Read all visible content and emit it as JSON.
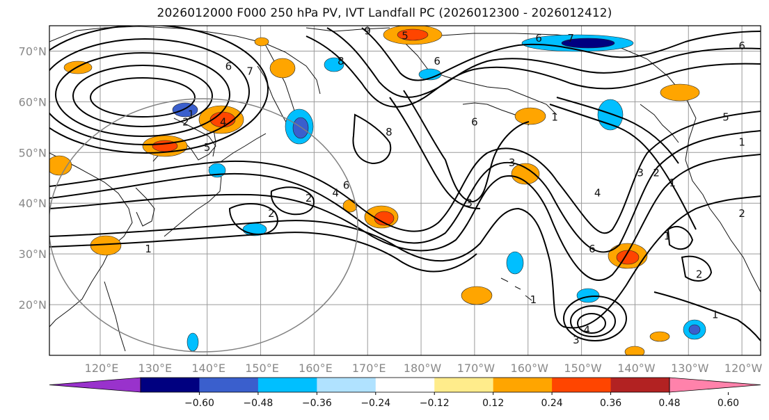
{
  "title": "2026012000 F000 250 hPa PV, IVT Landfall PC (2026012300 - 2026012412)",
  "lat_labels": [
    "70°N",
    "60°N",
    "50°N",
    "40°N",
    "30°N",
    "20°N"
  ],
  "lon_labels": [
    "120°E",
    "130°E",
    "140°E",
    "150°E",
    "160°E",
    "170°E",
    "180°W",
    "170°W",
    "160°W",
    "150°W",
    "140°W",
    "130°W",
    "120°W"
  ],
  "colorbar": {
    "ticks": [
      "−0.60",
      "−0.48",
      "−0.36",
      "−0.24",
      "−0.12",
      "0.12",
      "0.24",
      "0.36",
      "0.48",
      "0.60"
    ],
    "colors": [
      "#9932cc",
      "#000080",
      "#3a5fcd",
      "#00bfff",
      "#b0e2ff",
      "#ffffff",
      "#ffec8b",
      "#ffa500",
      "#ff4500",
      "#b22222",
      "#ff82ab"
    ]
  },
  "contour_labels": [
    {
      "text": "1",
      "lon": 137,
      "lat": 57.5
    },
    {
      "text": "2",
      "lon": 136,
      "lat": 56
    },
    {
      "text": "4",
      "lon": 143,
      "lat": 56
    },
    {
      "text": "5",
      "lon": 140,
      "lat": 51
    },
    {
      "text": "6",
      "lon": 144,
      "lat": 67
    },
    {
      "text": "7",
      "lon": 148,
      "lat": 66
    },
    {
      "text": "8",
      "lon": 165,
      "lat": 68
    },
    {
      "text": "9",
      "lon": 170,
      "lat": 74
    },
    {
      "text": "6",
      "lon": 183,
      "lat": 68
    },
    {
      "text": "5",
      "lon": 177,
      "lat": 73
    },
    {
      "text": "6",
      "lon": 202,
      "lat": 72.5
    },
    {
      "text": "7",
      "lon": 208,
      "lat": 72.5
    },
    {
      "text": "6",
      "lon": 240,
      "lat": 71
    },
    {
      "text": "8",
      "lon": 174,
      "lat": 54
    },
    {
      "text": "6",
      "lon": 190,
      "lat": 56
    },
    {
      "text": "3",
      "lon": 197,
      "lat": 48
    },
    {
      "text": "3",
      "lon": 189,
      "lat": 40
    },
    {
      "text": "1",
      "lon": 205,
      "lat": 57
    },
    {
      "text": "4",
      "lon": 213,
      "lat": 42
    },
    {
      "text": "3",
      "lon": 221,
      "lat": 46
    },
    {
      "text": "2",
      "lon": 224,
      "lat": 46
    },
    {
      "text": "1",
      "lon": 227,
      "lat": 44
    },
    {
      "text": "5",
      "lon": 237,
      "lat": 57
    },
    {
      "text": "1",
      "lon": 240,
      "lat": 52
    },
    {
      "text": "6",
      "lon": 212,
      "lat": 31
    },
    {
      "text": "1",
      "lon": 226,
      "lat": 33.5
    },
    {
      "text": "2",
      "lon": 232,
      "lat": 26
    },
    {
      "text": "2",
      "lon": 240,
      "lat": 38
    },
    {
      "text": "1",
      "lon": 201,
      "lat": 21
    },
    {
      "text": "1",
      "lon": 235,
      "lat": 18
    },
    {
      "text": "4",
      "lon": 211,
      "lat": 15
    },
    {
      "text": "3",
      "lon": 209,
      "lat": 13
    },
    {
      "text": "2",
      "lon": 152,
      "lat": 38
    },
    {
      "text": "2",
      "lon": 159,
      "lat": 41
    },
    {
      "text": "4",
      "lon": 164,
      "lat": 42
    },
    {
      "text": "6",
      "lon": 166,
      "lat": 43.5
    },
    {
      "text": "1",
      "lon": 129,
      "lat": 31
    }
  ]
}
